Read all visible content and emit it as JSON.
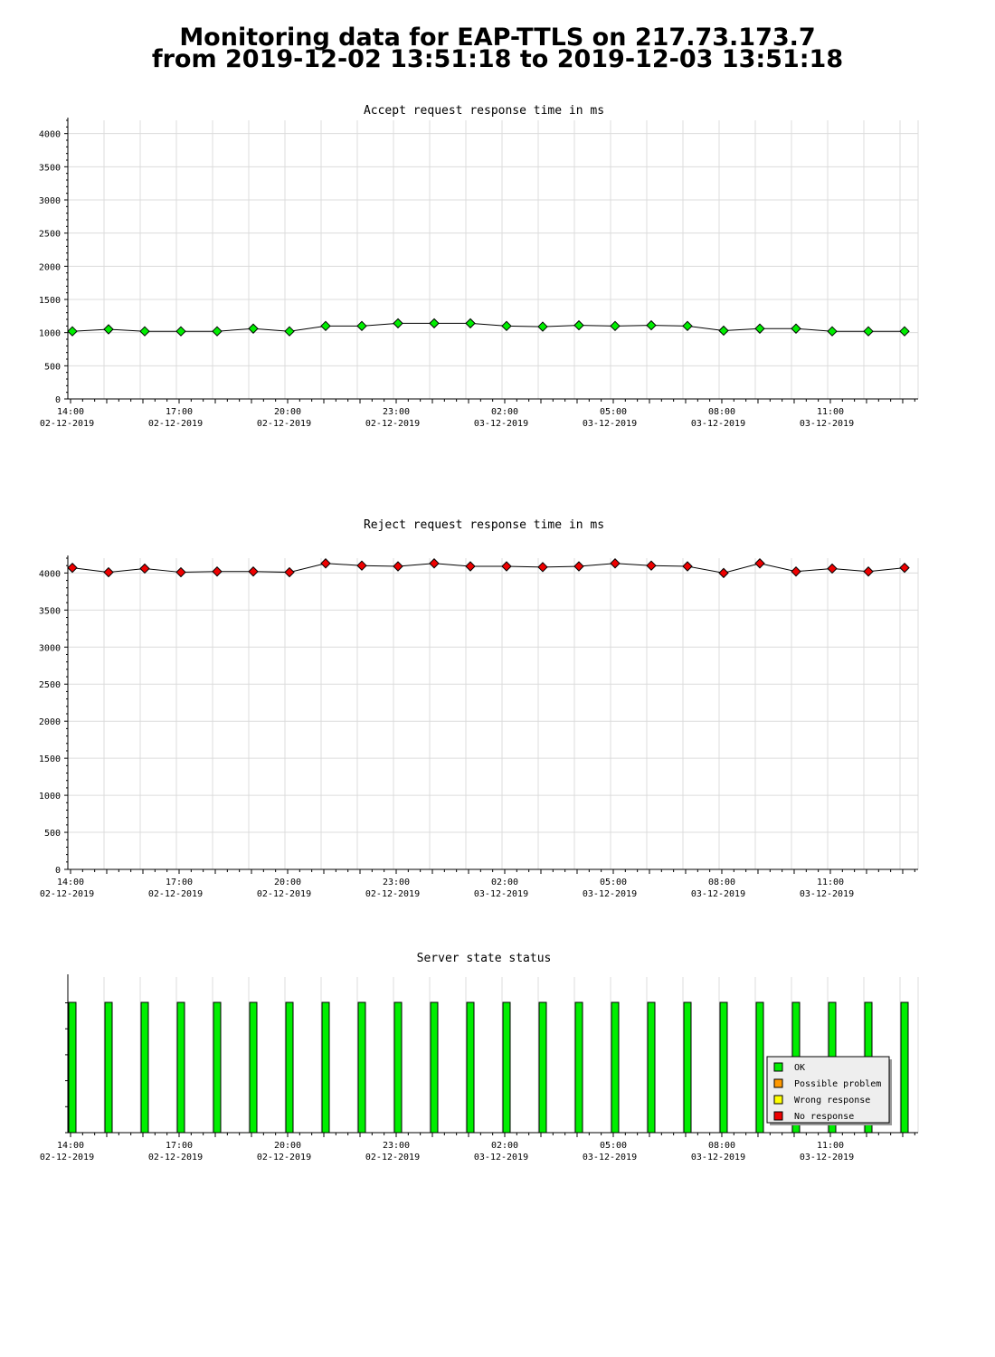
{
  "page": {
    "title_line1": "Monitoring data for EAP-TTLS on 217.73.173.7",
    "title_line2": "from 2019-12-02 13:51:18 to 2019-12-03 13:51:18"
  },
  "colors": {
    "accept_title": "#006600",
    "reject_title": "#660000",
    "status_title": "#660000",
    "accept_marker": "#00ee00",
    "reject_marker": "#ee0000",
    "ok": "#00ee00",
    "possible_problem": "#ff9900",
    "wrong_response": "#ffff00",
    "no_response": "#ee0000",
    "grid": "#dcdcdc"
  },
  "x_axis": {
    "labels": [
      {
        "time": "14:00",
        "date": "02-12-2019"
      },
      {
        "time": "17:00",
        "date": "02-12-2019"
      },
      {
        "time": "20:00",
        "date": "02-12-2019"
      },
      {
        "time": "23:00",
        "date": "02-12-2019"
      },
      {
        "time": "02:00",
        "date": "03-12-2019"
      },
      {
        "time": "05:00",
        "date": "03-12-2019"
      },
      {
        "time": "08:00",
        "date": "03-12-2019"
      },
      {
        "time": "11:00",
        "date": "03-12-2019"
      }
    ]
  },
  "chart_data": [
    {
      "type": "line",
      "title": "Accept request response time in ms",
      "x": [
        "2019-12-02 14:00",
        "2019-12-02 15:00",
        "2019-12-02 16:00",
        "2019-12-02 17:00",
        "2019-12-02 18:00",
        "2019-12-02 19:00",
        "2019-12-02 20:00",
        "2019-12-02 21:00",
        "2019-12-02 22:00",
        "2019-12-02 23:00",
        "2019-12-03 00:00",
        "2019-12-03 01:00",
        "2019-12-03 02:00",
        "2019-12-03 03:00",
        "2019-12-03 04:00",
        "2019-12-03 05:00",
        "2019-12-03 06:00",
        "2019-12-03 07:00",
        "2019-12-03 08:00",
        "2019-12-03 09:00",
        "2019-12-03 10:00",
        "2019-12-03 11:00",
        "2019-12-03 12:00",
        "2019-12-03 13:00"
      ],
      "values": [
        1020,
        1050,
        1020,
        1020,
        1020,
        1060,
        1020,
        1100,
        1100,
        1140,
        1140,
        1140,
        1100,
        1090,
        1110,
        1100,
        1110,
        1100,
        1030,
        1060,
        1060,
        1020,
        1020,
        1020
      ],
      "yticks": [
        0,
        500,
        1000,
        1500,
        2000,
        2500,
        3000,
        3500,
        4000
      ],
      "ylim": [
        0,
        4200
      ],
      "grid": true
    },
    {
      "type": "line",
      "title": "Reject request response time in ms",
      "x": [
        "2019-12-02 14:00",
        "2019-12-02 15:00",
        "2019-12-02 16:00",
        "2019-12-02 17:00",
        "2019-12-02 18:00",
        "2019-12-02 19:00",
        "2019-12-02 20:00",
        "2019-12-02 21:00",
        "2019-12-02 22:00",
        "2019-12-02 23:00",
        "2019-12-03 00:00",
        "2019-12-03 01:00",
        "2019-12-03 02:00",
        "2019-12-03 03:00",
        "2019-12-03 04:00",
        "2019-12-03 05:00",
        "2019-12-03 06:00",
        "2019-12-03 07:00",
        "2019-12-03 08:00",
        "2019-12-03 09:00",
        "2019-12-03 10:00",
        "2019-12-03 11:00",
        "2019-12-03 12:00",
        "2019-12-03 13:00"
      ],
      "values": [
        4070,
        4010,
        4060,
        4010,
        4020,
        4020,
        4010,
        4130,
        4100,
        4090,
        4130,
        4090,
        4090,
        4080,
        4090,
        4130,
        4100,
        4090,
        4000,
        4130,
        4020,
        4060,
        4020,
        4070
      ],
      "yticks": [
        0,
        500,
        1000,
        1500,
        2000,
        2500,
        3000,
        3500,
        4000
      ],
      "ylim": [
        0,
        4200
      ],
      "grid": true
    },
    {
      "type": "bar",
      "title": "Server state status",
      "x": [
        "2019-12-02 14:00",
        "2019-12-02 15:00",
        "2019-12-02 16:00",
        "2019-12-02 17:00",
        "2019-12-02 18:00",
        "2019-12-02 19:00",
        "2019-12-02 20:00",
        "2019-12-02 21:00",
        "2019-12-02 22:00",
        "2019-12-02 23:00",
        "2019-12-03 00:00",
        "2019-12-03 01:00",
        "2019-12-03 02:00",
        "2019-12-03 03:00",
        "2019-12-03 04:00",
        "2019-12-03 05:00",
        "2019-12-03 06:00",
        "2019-12-03 07:00",
        "2019-12-03 08:00",
        "2019-12-03 09:00",
        "2019-12-03 10:00",
        "2019-12-03 11:00",
        "2019-12-03 12:00",
        "2019-12-03 13:00"
      ],
      "status": [
        "OK",
        "OK",
        "OK",
        "OK",
        "OK",
        "OK",
        "OK",
        "OK",
        "OK",
        "OK",
        "OK",
        "OK",
        "OK",
        "OK",
        "OK",
        "OK",
        "OK",
        "OK",
        "OK",
        "OK",
        "OK",
        "OK",
        "OK",
        "OK"
      ],
      "legend": {
        "items": [
          {
            "label": "OK",
            "color": "#00ee00"
          },
          {
            "label": "Possible problem",
            "color": "#ff9900"
          },
          {
            "label": "Wrong response",
            "color": "#ffff00"
          },
          {
            "label": "No response",
            "color": "#ee0000"
          }
        ],
        "position": "bottom-right"
      }
    }
  ]
}
